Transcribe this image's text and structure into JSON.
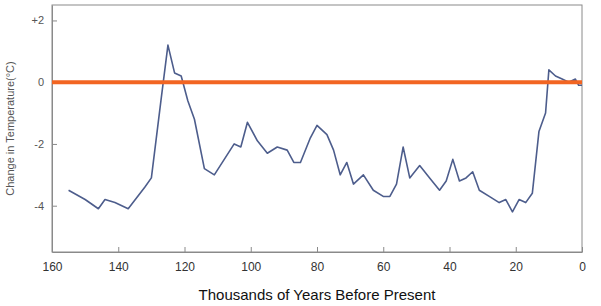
{
  "chart_data": {
    "type": "line",
    "x_label": "Thousands of Years Before Present",
    "y_label": "Change in Temperature(°C)",
    "x": [
      155,
      150,
      146,
      144,
      141,
      137,
      132,
      130,
      127,
      125,
      123,
      121,
      119,
      117,
      114,
      111,
      108,
      105,
      103,
      101,
      98,
      95,
      92,
      89,
      87,
      85,
      82,
      80,
      77,
      75,
      73,
      71,
      69,
      66,
      63,
      60,
      58,
      56,
      54,
      52,
      49,
      46,
      43,
      41,
      39,
      37,
      35,
      33,
      31,
      28,
      25,
      23,
      21,
      19,
      17,
      15,
      13,
      11,
      10,
      8,
      6,
      4,
      2,
      1,
      0
    ],
    "values": [
      -3.5,
      -3.8,
      -4.1,
      -3.8,
      -3.9,
      -4.1,
      -3.4,
      -3.1,
      -0.5,
      1.2,
      0.3,
      0.2,
      -0.6,
      -1.2,
      -2.8,
      -3.0,
      -2.5,
      -2.0,
      -2.1,
      -1.3,
      -1.9,
      -2.3,
      -2.1,
      -2.2,
      -2.6,
      -2.6,
      -1.8,
      -1.4,
      -1.7,
      -2.2,
      -3.0,
      -2.6,
      -3.3,
      -3.0,
      -3.5,
      -3.7,
      -3.7,
      -3.3,
      -2.1,
      -3.1,
      -2.7,
      -3.1,
      -3.5,
      -3.2,
      -2.5,
      -3.2,
      -3.1,
      -2.9,
      -3.5,
      -3.7,
      -3.9,
      -3.8,
      -4.2,
      -3.8,
      -3.9,
      -3.6,
      -1.6,
      -1.0,
      0.4,
      0.2,
      0.1,
      0.0,
      0.1,
      -0.1,
      -0.1
    ],
    "color": "#4d5d8c",
    "reference_line": {
      "value": 0,
      "color": "#f26522"
    },
    "xlim": [
      160,
      0
    ],
    "xticks": [
      160,
      140,
      120,
      100,
      80,
      60,
      40,
      20,
      0
    ],
    "ylim": [
      -5.5,
      2.5
    ],
    "yticks": [
      {
        "value": 2,
        "label": "+2"
      },
      0,
      -2,
      -4
    ],
    "grid": false
  }
}
